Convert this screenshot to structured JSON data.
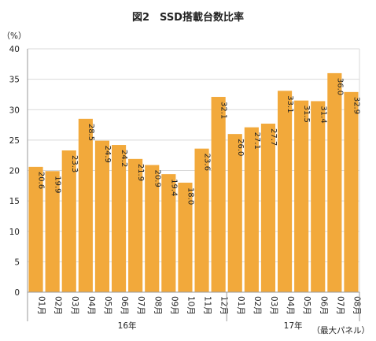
{
  "chart_data": {
    "type": "bar",
    "title": "図2　SSD搭載台数比率",
    "ylabel": "（%）",
    "ylim": [
      0,
      40
    ],
    "yticks": [
      0,
      5,
      10,
      15,
      20,
      25,
      30,
      35,
      40
    ],
    "grid": true,
    "categories": [
      "01月",
      "02月",
      "03月",
      "04月",
      "05月",
      "06月",
      "07月",
      "08月",
      "09月",
      "10月",
      "11月",
      "12月",
      "01月",
      "02月",
      "03月",
      "04月",
      "05月",
      "06月",
      "07月",
      "08月"
    ],
    "values": [
      20.6,
      19.9,
      23.3,
      28.5,
      24.9,
      24.2,
      21.9,
      20.9,
      19.4,
      18.0,
      23.6,
      32.1,
      26.0,
      27.1,
      27.7,
      33.1,
      31.5,
      31.4,
      36.0,
      32.9
    ],
    "value_labels": [
      "20.6",
      "19.9",
      "23.3",
      "28.5",
      "24.9",
      "24.2",
      "21.9",
      "20.9",
      "19.4",
      "18.0",
      "23.6",
      "32.1",
      "26.0",
      "27.1",
      "27.7",
      "33.1",
      "31.5",
      "31.4",
      "36.0",
      "32.9"
    ],
    "groups": [
      {
        "label": "16年",
        "start": 0,
        "count": 12
      },
      {
        "label": "17年",
        "start": 12,
        "count": 8
      }
    ],
    "note": "（最大パネル）",
    "colors": {
      "bar": "#f2a93b"
    }
  }
}
